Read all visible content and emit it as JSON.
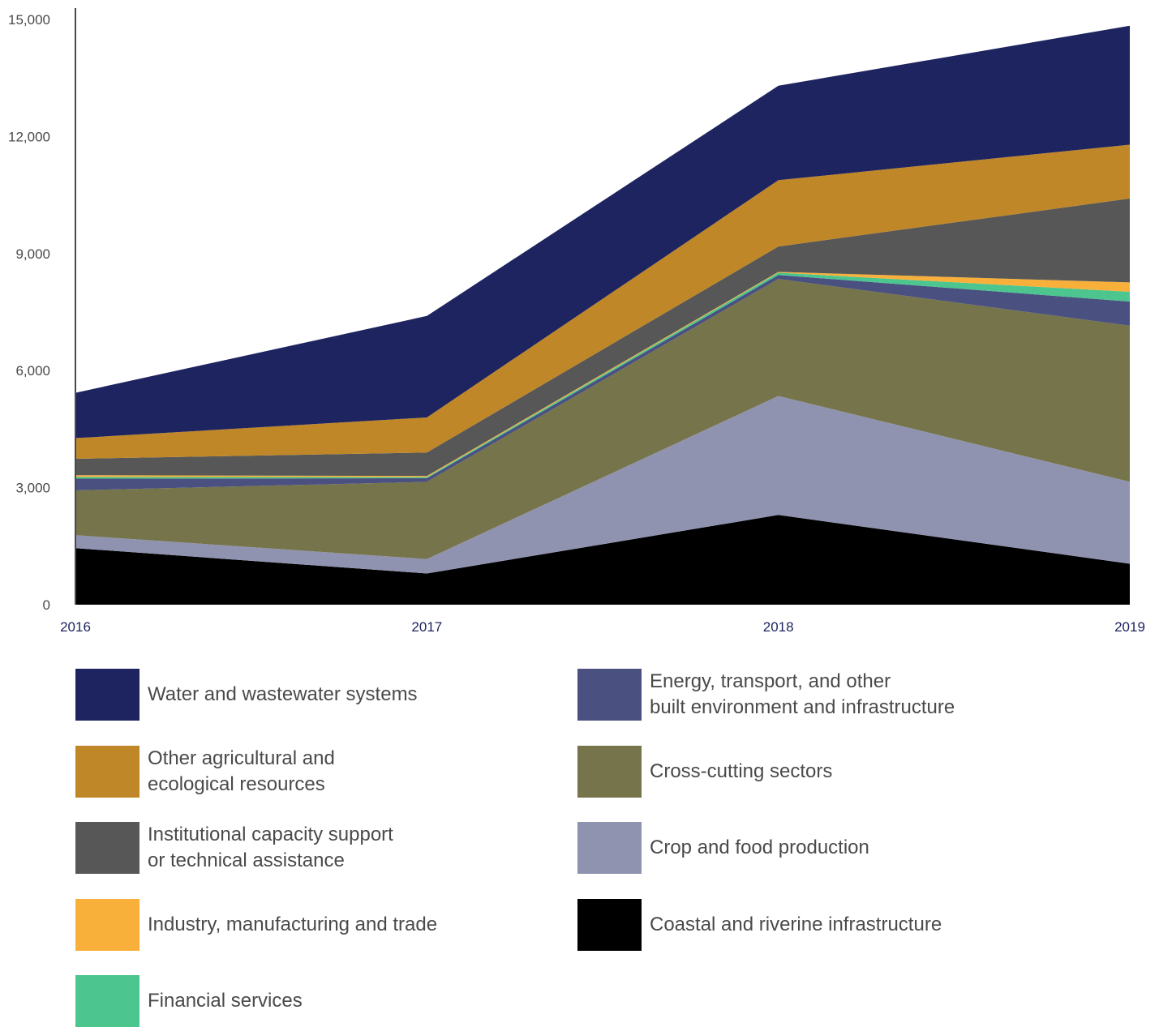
{
  "chart_data": {
    "type": "area",
    "stacked": true,
    "title": "",
    "xlabel": "",
    "ylabel": "",
    "x": [
      "2016",
      "2017",
      "2018",
      "2019"
    ],
    "ylim": [
      0,
      15000
    ],
    "yticks": [
      0,
      3000,
      6000,
      9000,
      12000,
      15000
    ],
    "ytick_labels": [
      "0",
      "3,000",
      "6,000",
      "9,000",
      "12,000",
      "15,000"
    ],
    "grid": false,
    "legend_position": "bottom",
    "series": [
      {
        "name": "Coastal and riverine infrastructure",
        "color": "#000000",
        "values": [
          1450,
          800,
          2300,
          1050
        ]
      },
      {
        "name": "Crop and food production",
        "color": "#8f93b0",
        "values": [
          330,
          370,
          3050,
          2100
        ]
      },
      {
        "name": "Cross-cutting sectors",
        "color": "#76744a",
        "values": [
          1150,
          1980,
          3000,
          4000
        ]
      },
      {
        "name": "Energy, transport, and other\nbuilt environment and infrastructure",
        "color": "#4a5080",
        "values": [
          300,
          90,
          100,
          620
        ]
      },
      {
        "name": "Financial services",
        "color": "#4cc58e",
        "values": [
          45,
          30,
          60,
          250
        ]
      },
      {
        "name": "Industry, manufacturing and trade",
        "color": "#f8b03a",
        "values": [
          45,
          30,
          20,
          240
        ]
      },
      {
        "name": "Institutional capacity support\nor technical assistance",
        "color": "#575757",
        "values": [
          420,
          600,
          650,
          2150
        ]
      },
      {
        "name": "Other agricultural and\necological resources",
        "color": "#bf8727",
        "values": [
          530,
          900,
          1700,
          1380
        ]
      },
      {
        "name": "Water and wastewater systems",
        "color": "#1e2460",
        "values": [
          1160,
          2600,
          2420,
          3050
        ]
      }
    ]
  },
  "legend": {
    "items": [
      {
        "label": "Water and wastewater systems",
        "color": "#1e2460"
      },
      {
        "label": "Energy, transport, and other\nbuilt environment and infrastructure",
        "color": "#4a5080"
      },
      {
        "label": "Other agricultural and\necological resources",
        "color": "#bf8727"
      },
      {
        "label": "Cross-cutting sectors",
        "color": "#76744a"
      },
      {
        "label": "Institutional capacity support\nor technical assistance",
        "color": "#575757"
      },
      {
        "label": "Crop and food production",
        "color": "#8f93b0"
      },
      {
        "label": "Industry, manufacturing and trade",
        "color": "#f8b03a"
      },
      {
        "label": "Coastal and riverine infrastructure",
        "color": "#000000"
      },
      {
        "label": "Financial services",
        "color": "#4cc58e"
      }
    ]
  }
}
